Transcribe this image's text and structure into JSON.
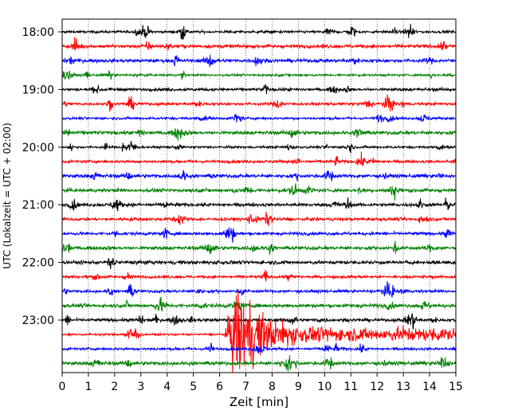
{
  "chart_data": {
    "type": "line",
    "title": "",
    "xlabel": "Zeit  [min]",
    "ylabel": "UTC (Lokalzeit = UTC + 02:00)",
    "xlim": [
      0,
      15
    ],
    "x_ticks": [
      0,
      1,
      2,
      3,
      4,
      5,
      6,
      7,
      8,
      9,
      10,
      11,
      12,
      13,
      14,
      15
    ],
    "y_tick_labels": [
      "18:00",
      "19:00",
      "20:00",
      "21:00",
      "22:00",
      "23:00"
    ],
    "y_tick_row_index": [
      0,
      4,
      8,
      12,
      16,
      20
    ],
    "grid": {
      "x": "dotted",
      "y": "off"
    },
    "trace_interval_minutes": 15,
    "trace_colors": [
      "#000000",
      "#ff0000",
      "#0000ff",
      "#008000"
    ],
    "traces": [
      {
        "start": "18:00"
      },
      {
        "start": "18:15"
      },
      {
        "start": "18:30"
      },
      {
        "start": "18:45"
      },
      {
        "start": "19:00"
      },
      {
        "start": "19:15"
      },
      {
        "start": "19:30"
      },
      {
        "start": "19:45"
      },
      {
        "start": "20:00"
      },
      {
        "start": "20:15"
      },
      {
        "start": "20:30"
      },
      {
        "start": "20:45"
      },
      {
        "start": "21:00"
      },
      {
        "start": "21:15"
      },
      {
        "start": "21:30"
      },
      {
        "start": "21:45"
      },
      {
        "start": "22:00"
      },
      {
        "start": "22:15"
      },
      {
        "start": "22:30"
      },
      {
        "start": "22:45"
      },
      {
        "start": "23:00"
      },
      {
        "start": "23:15"
      },
      {
        "start": "23:30"
      },
      {
        "start": "23:45"
      }
    ],
    "event": {
      "trace_start": "23:15",
      "onset_minute": 6.2,
      "peak_minute": 6.6,
      "coda_end_minute": 15,
      "clipped": true
    }
  }
}
